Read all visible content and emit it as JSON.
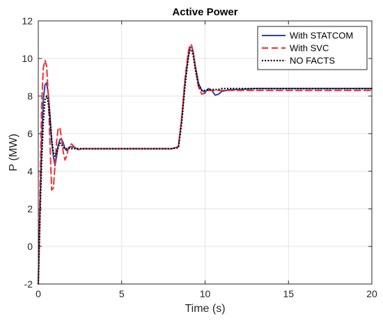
{
  "chart_data": {
    "type": "line",
    "title": "Active Power",
    "xlabel": "Time (s)",
    "ylabel": "P (MW)",
    "xlim": [
      0,
      20
    ],
    "ylim": [
      -2,
      12
    ],
    "xticks": [
      0,
      5,
      10,
      15,
      20
    ],
    "yticks": [
      -2,
      0,
      2,
      4,
      6,
      8,
      10,
      12
    ],
    "grid": true,
    "legend_position": "top-right",
    "series": [
      {
        "name": "With STATCOM",
        "color": "#2F3F9F",
        "dash": "solid",
        "x": [
          0,
          0.1,
          0.2,
          0.3,
          0.4,
          0.5,
          0.6,
          0.7,
          0.8,
          0.9,
          1.0,
          1.1,
          1.2,
          1.3,
          1.4,
          1.5,
          1.6,
          1.7,
          1.8,
          1.9,
          2.0,
          2.2,
          2.4,
          2.6,
          2.8,
          3.0,
          4.0,
          5.0,
          6.0,
          7.0,
          8.0,
          8.4,
          8.6,
          8.8,
          9.0,
          9.1,
          9.2,
          9.3,
          9.4,
          9.6,
          9.8,
          10.0,
          10.2,
          10.4,
          10.6,
          10.8,
          11.0,
          11.5,
          12,
          13,
          14,
          15,
          16,
          17,
          18,
          19,
          20
        ],
        "y": [
          -2,
          2,
          5.5,
          7.8,
          8.6,
          8.7,
          8.1,
          7.0,
          5.6,
          4.8,
          4.3,
          4.8,
          5.4,
          5.7,
          5.7,
          5.5,
          5.2,
          5.1,
          5.2,
          5.3,
          5.3,
          5.25,
          5.15,
          5.2,
          5.2,
          5.2,
          5.2,
          5.2,
          5.2,
          5.2,
          5.2,
          5.3,
          6.8,
          8.8,
          10.2,
          10.6,
          10.6,
          10.3,
          9.7,
          8.7,
          8.3,
          8.2,
          8.4,
          8.3,
          8.05,
          8.1,
          8.25,
          8.35,
          8.35,
          8.4,
          8.4,
          8.4,
          8.4,
          8.4,
          8.4,
          8.4,
          8.4
        ]
      },
      {
        "name": "With SVC",
        "color": "#F03030",
        "dash": "dashed",
        "x": [
          0,
          0.1,
          0.2,
          0.3,
          0.4,
          0.5,
          0.6,
          0.7,
          0.8,
          0.9,
          1.0,
          1.1,
          1.2,
          1.3,
          1.4,
          1.5,
          1.6,
          1.7,
          1.8,
          1.9,
          2.0,
          2.2,
          2.4,
          2.6,
          2.8,
          3.0,
          4.0,
          5.0,
          6.0,
          7.0,
          8.0,
          8.4,
          8.6,
          8.8,
          9.0,
          9.1,
          9.2,
          9.3,
          9.4,
          9.6,
          9.8,
          10.0,
          10.2,
          10.4,
          10.6,
          10.8,
          11.0,
          11.5,
          12,
          13,
          14,
          15,
          16,
          17,
          18,
          19,
          20
        ],
        "y": [
          -2,
          3,
          7.5,
          9.5,
          9.9,
          9.6,
          8.0,
          5.5,
          3.0,
          3.1,
          4.3,
          5.6,
          6.3,
          6.3,
          5.7,
          5.0,
          4.6,
          4.8,
          5.2,
          5.4,
          5.45,
          5.25,
          5.15,
          5.2,
          5.2,
          5.2,
          5.2,
          5.2,
          5.2,
          5.2,
          5.2,
          5.3,
          6.9,
          9.0,
          10.4,
          10.75,
          10.7,
          10.3,
          9.6,
          8.5,
          8.1,
          8.15,
          8.3,
          8.3,
          8.3,
          8.3,
          8.3,
          8.3,
          8.3,
          8.3,
          8.3,
          8.3,
          8.3,
          8.3,
          8.3,
          8.3,
          8.3
        ]
      },
      {
        "name": "NO FACTS",
        "color": "#000000",
        "dash": "dotted",
        "x": [
          0,
          0.1,
          0.2,
          0.3,
          0.4,
          0.5,
          0.6,
          0.7,
          0.8,
          0.9,
          1.0,
          1.1,
          1.2,
          1.3,
          1.4,
          1.5,
          1.6,
          1.7,
          1.8,
          1.9,
          2.0,
          2.2,
          2.4,
          2.6,
          2.8,
          3.0,
          4.0,
          5.0,
          6.0,
          7.0,
          8.0,
          8.4,
          8.6,
          8.8,
          9.0,
          9.1,
          9.2,
          9.3,
          9.4,
          9.6,
          9.8,
          10.0,
          10.2,
          10.4,
          10.6,
          10.8,
          11.0,
          11.5,
          12,
          13,
          14,
          15,
          16,
          17,
          18,
          19,
          20
        ],
        "y": [
          -2,
          1.5,
          4.5,
          6.6,
          7.8,
          8.0,
          7.6,
          6.7,
          5.7,
          5.0,
          4.8,
          5.0,
          5.3,
          5.5,
          5.4,
          5.3,
          5.2,
          5.2,
          5.2,
          5.25,
          5.2,
          5.2,
          5.2,
          5.2,
          5.2,
          5.2,
          5.2,
          5.2,
          5.2,
          5.2,
          5.2,
          5.25,
          6.6,
          8.6,
          10.1,
          10.45,
          10.45,
          10.1,
          9.5,
          8.6,
          8.3,
          8.3,
          8.35,
          8.35,
          8.35,
          8.35,
          8.4,
          8.4,
          8.4,
          8.4,
          8.4,
          8.4,
          8.4,
          8.4,
          8.4,
          8.4,
          8.4
        ]
      }
    ]
  }
}
